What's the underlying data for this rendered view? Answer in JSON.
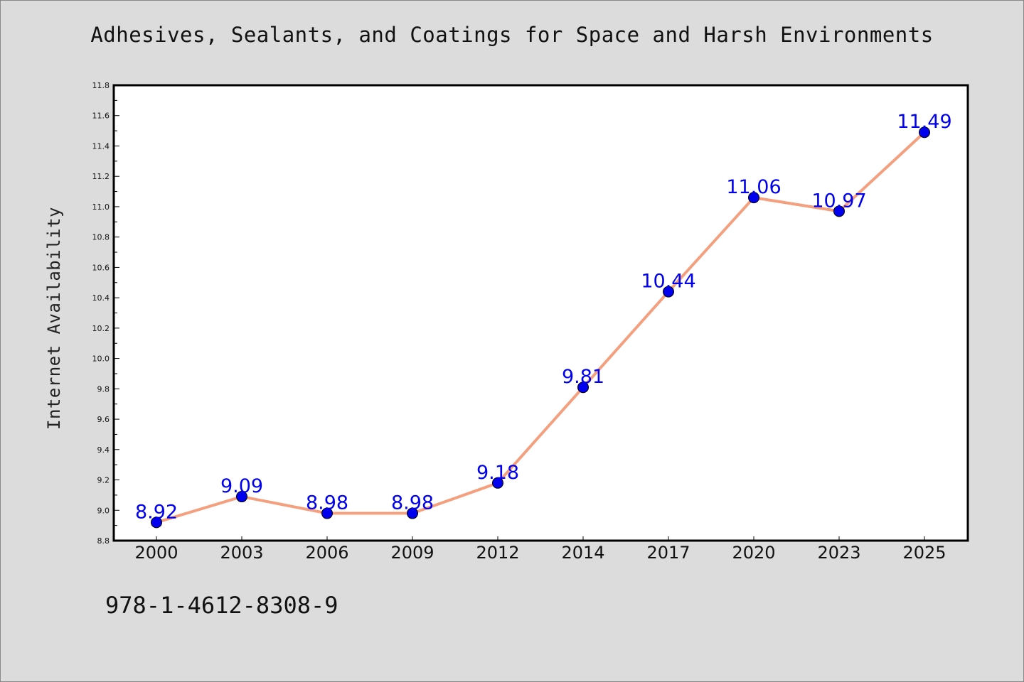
{
  "chart_data": {
    "type": "line",
    "title": "Adhesives, Sealants, and Coatings for Space and Harsh Environments",
    "ylabel": "Internet Availability",
    "xlabel": "",
    "categories": [
      "2000",
      "2003",
      "2006",
      "2009",
      "2012",
      "2014",
      "2017",
      "2020",
      "2023",
      "2025"
    ],
    "values": [
      8.92,
      9.09,
      8.98,
      8.98,
      9.18,
      9.81,
      10.44,
      11.06,
      10.97,
      11.49
    ],
    "value_labels": [
      "8.92",
      "9.09",
      "8.98",
      "8.98",
      "9.18",
      "9.81",
      "10.44",
      "11.06",
      "10.97",
      "11.49"
    ],
    "ylim": [
      8.8,
      11.8
    ],
    "yticks": [
      "8.8",
      "9.0",
      "9.2",
      "9.4",
      "9.6",
      "9.8",
      "10.0",
      "10.2",
      "10.4",
      "10.6",
      "10.8",
      "11.0",
      "11.2",
      "11.4",
      "11.6",
      "11.8"
    ],
    "grid": false,
    "line_color": "#f4a07f",
    "marker_color": "#0000ee",
    "label_color": "#0000ee"
  },
  "footer": {
    "isbn": "978-1-4612-8308-9"
  }
}
